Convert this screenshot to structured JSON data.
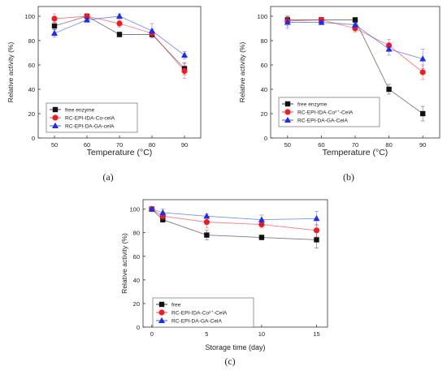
{
  "chart_data": [
    {
      "type": "line",
      "panel_label": "(a)",
      "xlabel": "Temperature (°C)",
      "ylabel": "Relative activity (%)",
      "x": [
        50,
        60,
        70,
        80,
        90
      ],
      "xticks": [
        "50",
        "60",
        "70",
        "80",
        "90"
      ],
      "yticks": [
        "0",
        "20",
        "40",
        "60",
        "80",
        "100"
      ],
      "xlim": [
        45,
        95
      ],
      "ylim": [
        0,
        108
      ],
      "legend_position": "lower-left",
      "series": [
        {
          "name": "free enzyme",
          "values": [
            92,
            100,
            85,
            85,
            57
          ],
          "errors": [
            3,
            2,
            2,
            2,
            5
          ],
          "color": "#111111",
          "marker": "square"
        },
        {
          "name": "RC-EPI-IDA-Co-celA",
          "values": [
            98,
            100,
            94,
            86,
            55
          ],
          "errors": [
            4,
            2,
            3,
            3,
            6
          ],
          "color": "#ee1c24",
          "marker": "circle"
        },
        {
          "name": "RC-EPI-DA-GA-celA",
          "values": [
            86,
            97,
            100,
            88,
            68
          ],
          "errors": [
            3,
            2,
            2,
            6,
            3
          ],
          "color": "#1e2de6",
          "marker": "triangle"
        }
      ]
    },
    {
      "type": "line",
      "panel_label": "(b)",
      "xlabel": "Temperature (°C)",
      "ylabel": "Relative activity (%)",
      "x": [
        50,
        60,
        70,
        80,
        90
      ],
      "xticks": [
        "50",
        "60",
        "70",
        "80",
        "90"
      ],
      "yticks": [
        "0",
        "20",
        "40",
        "60",
        "80",
        "100"
      ],
      "xlim": [
        45,
        95
      ],
      "ylim": [
        0,
        108
      ],
      "legend_position": "middle-left",
      "series": [
        {
          "name": "free enzyme",
          "values": [
            97,
            97,
            97,
            40,
            20
          ],
          "errors": [
            3,
            2,
            2,
            4,
            6
          ],
          "color": "#111111",
          "marker": "square"
        },
        {
          "name": "RC-EPI-IDA-Co²⁺-CelA",
          "values": [
            96,
            97,
            90,
            76,
            54
          ],
          "errors": [
            4,
            2,
            3,
            5,
            6
          ],
          "color": "#ee1c24",
          "marker": "circle"
        },
        {
          "name": "RC-EPI-DA-GA-CelA",
          "values": [
            95,
            95,
            93,
            73,
            65
          ],
          "errors": [
            5,
            2,
            3,
            5,
            8
          ],
          "color": "#1e2de6",
          "marker": "triangle"
        }
      ]
    },
    {
      "type": "line",
      "panel_label": "(c)",
      "xlabel": "Storage time (day)",
      "ylabel": "Relative activity (%)",
      "x": [
        0,
        1,
        5,
        10,
        15
      ],
      "xticks": [
        "0",
        "5",
        "10",
        "15"
      ],
      "xtick_values": [
        0,
        5,
        10,
        15
      ],
      "yticks": [
        "0",
        "20",
        "40",
        "60",
        "80",
        "100"
      ],
      "xlim": [
        -0.8,
        16
      ],
      "ylim": [
        0,
        108
      ],
      "legend_position": "lower-left",
      "series": [
        {
          "name": "free",
          "values": [
            100,
            91,
            78,
            76,
            74
          ],
          "errors": [
            1,
            2,
            4,
            2,
            7
          ],
          "color": "#111111",
          "marker": "square"
        },
        {
          "name": "RC-EPI-IDA-Co²⁺-CelA",
          "values": [
            100,
            94,
            89,
            87,
            82
          ],
          "errors": [
            1,
            3,
            5,
            3,
            5
          ],
          "color": "#ee1c24",
          "marker": "circle"
        },
        {
          "name": "RC-EPI-DA-GA-CelA",
          "values": [
            100,
            97,
            94,
            91,
            92
          ],
          "errors": [
            1,
            3,
            2,
            4,
            6
          ],
          "color": "#1e2de6",
          "marker": "triangle"
        }
      ]
    }
  ]
}
